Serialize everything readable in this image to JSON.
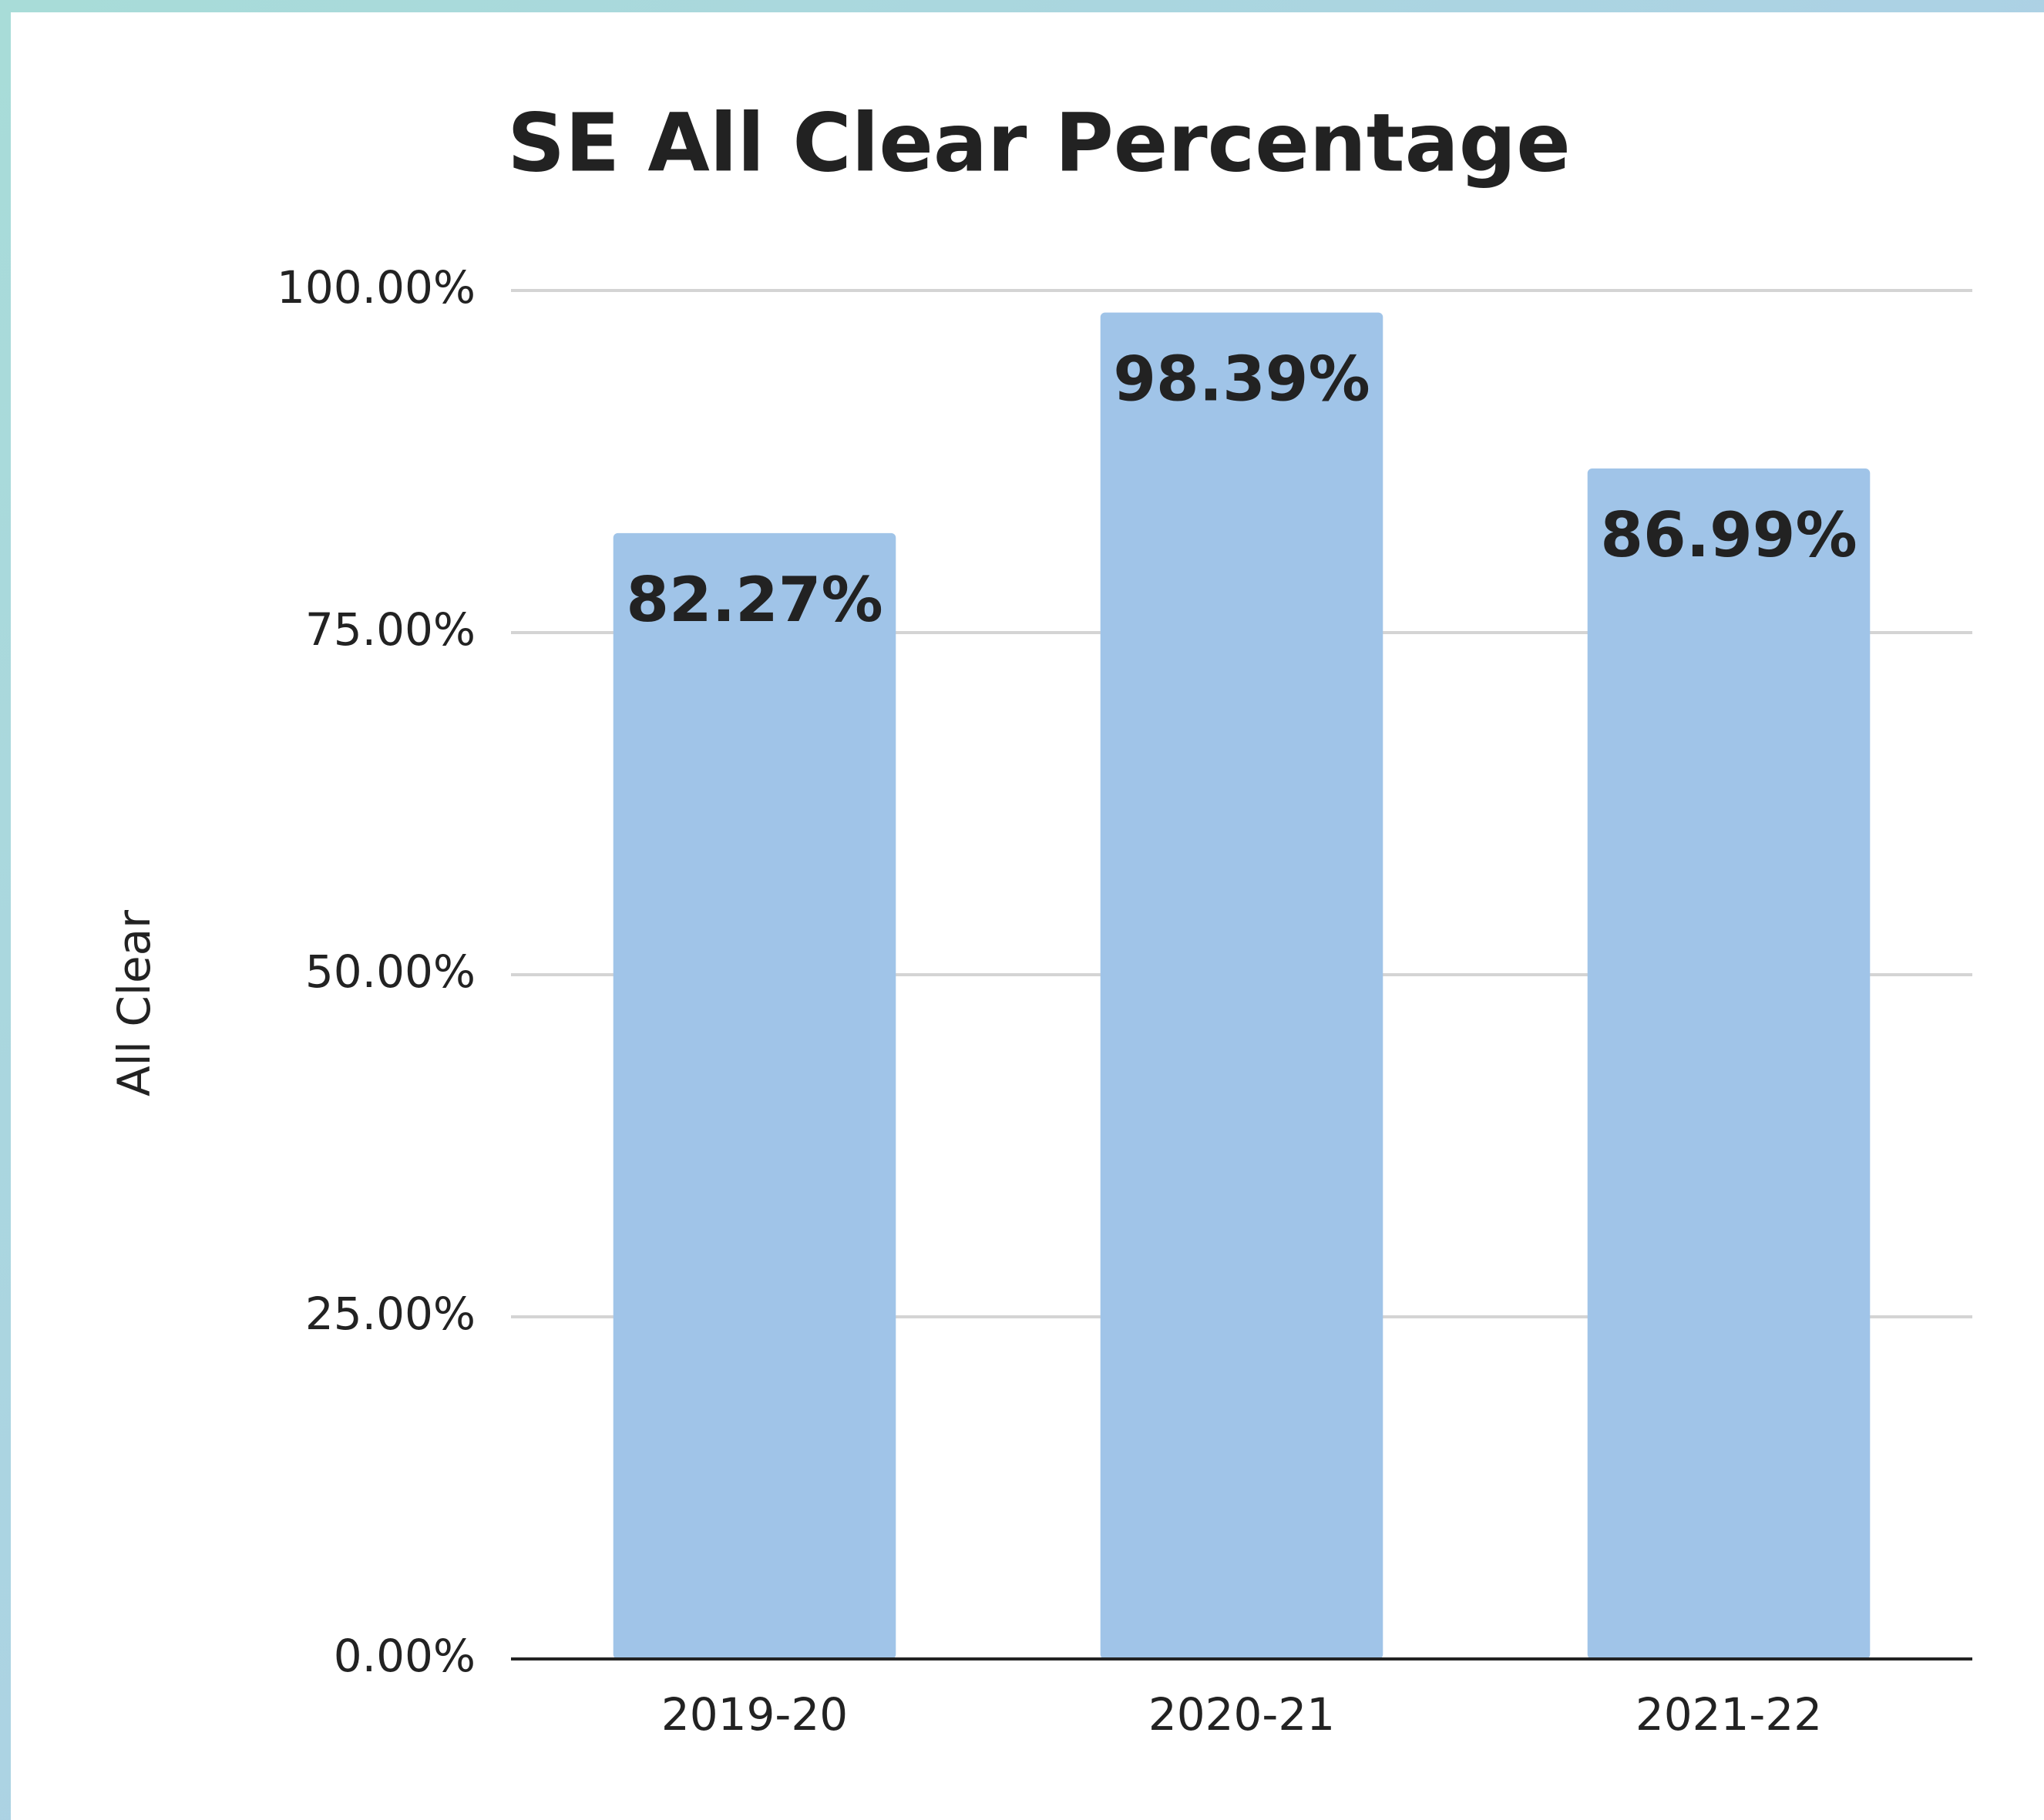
{
  "chart_data": {
    "type": "bar",
    "title": "SE All Clear Percentage",
    "y_label": "All Clear",
    "categories": [
      "2019-20",
      "2020-21",
      "2021-22"
    ],
    "values": [
      82.27,
      98.39,
      86.99
    ],
    "value_labels": [
      "82.27%",
      "98.39%",
      "86.99%"
    ],
    "color": "#a0c4e8",
    "ylim": [
      0,
      100
    ],
    "yticks": [
      {
        "value": 0,
        "label": "0.00%"
      },
      {
        "value": 25,
        "label": "25.00%"
      },
      {
        "value": 50,
        "label": "50.00%"
      },
      {
        "value": 75,
        "label": "75.00%"
      },
      {
        "value": 100,
        "label": "100.00%"
      }
    ],
    "grid": true
  }
}
